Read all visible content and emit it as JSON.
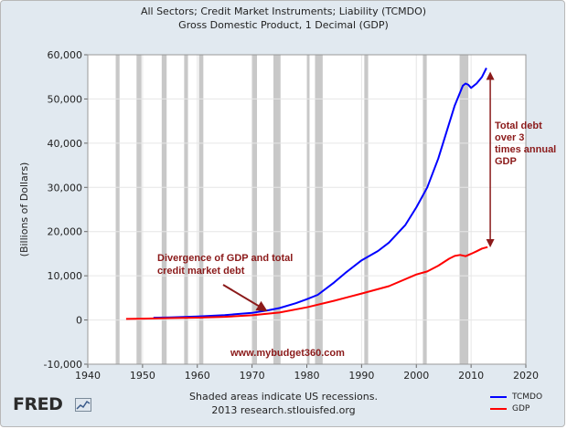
{
  "titles": {
    "line1": "All Sectors; Credit Market Instruments; Liability (TCMDO)",
    "line2": "Gross Domestic Product, 1 Decimal (GDP)"
  },
  "footer": {
    "note": "Shaded areas indicate US recessions.",
    "source": "2013 research.stlouisfed.org",
    "logo_text": "FRED"
  },
  "chart_data": {
    "type": "line",
    "title": "",
    "xlabel": "",
    "ylabel": "(Billions of Dollars)",
    "xlim": [
      1940,
      2020
    ],
    "ylim": [
      -10000,
      60000
    ],
    "x_ticks": [
      "1940",
      "1950",
      "1960",
      "1970",
      "1980",
      "1990",
      "2000",
      "2010",
      "2020"
    ],
    "y_ticks": [
      "-10,000",
      "0",
      "10,000",
      "20,000",
      "30,000",
      "40,000",
      "50,000",
      "60,000"
    ],
    "recessions": [
      [
        1945.1,
        1945.8
      ],
      [
        1948.9,
        1949.8
      ],
      [
        1953.5,
        1954.4
      ],
      [
        1957.6,
        1958.3
      ],
      [
        1960.3,
        1961.1
      ],
      [
        1969.9,
        1970.9
      ],
      [
        1973.9,
        1975.2
      ],
      [
        1980.0,
        1980.5
      ],
      [
        1981.5,
        1982.9
      ],
      [
        1990.5,
        1991.2
      ],
      [
        2001.2,
        2001.9
      ],
      [
        2007.9,
        2009.5
      ]
    ],
    "series": [
      {
        "name": "TCMDO",
        "color": "#0000ff",
        "x": [
          1952,
          1955,
          1960,
          1965,
          1970,
          1973,
          1975,
          1978,
          1980,
          1982,
          1985,
          1987,
          1990,
          1993,
          1995,
          1998,
          2000,
          2002,
          2004,
          2006,
          2007,
          2008,
          2008.5,
          2009,
          2009.5,
          2010,
          2011,
          2012,
          2012.8
        ],
        "values": [
          500,
          600,
          800,
          1100,
          1600,
          2200,
          2700,
          3800,
          4700,
          5700,
          8500,
          10600,
          13500,
          15600,
          17500,
          21500,
          25500,
          30000,
          36500,
          44500,
          48500,
          51500,
          53000,
          53500,
          53200,
          52500,
          53500,
          55000,
          57000
        ]
      },
      {
        "name": "GDP",
        "color": "#ff0000",
        "x": [
          1947,
          1950,
          1955,
          1960,
          1965,
          1970,
          1975,
          1980,
          1985,
          1990,
          1995,
          2000,
          2002,
          2004,
          2006,
          2007,
          2008,
          2009,
          2010,
          2011,
          2012,
          2013
        ],
        "values": [
          240,
          300,
          420,
          540,
          720,
          1070,
          1690,
          2860,
          4350,
          5980,
          7660,
          10290,
          10980,
          12270,
          13860,
          14480,
          14720,
          14420,
          14960,
          15540,
          16160,
          16500
        ]
      }
    ],
    "annotations": [
      {
        "text": [
          "Divergence of GDP and total",
          "credit market debt"
        ]
      },
      {
        "text": [
          "Total debt",
          "over 3",
          "times annual",
          "GDP"
        ]
      },
      {
        "text": [
          "www.mybudget360.com"
        ]
      }
    ],
    "legend_position": "bottom-right"
  }
}
